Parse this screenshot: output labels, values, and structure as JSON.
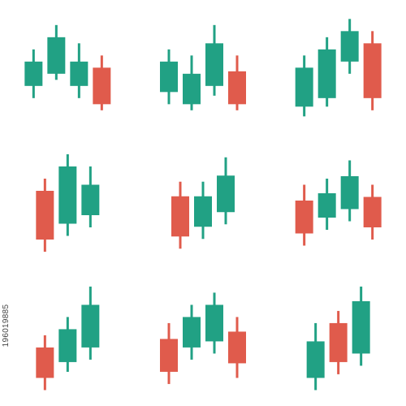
{
  "colors": {
    "bullish": "#21a184",
    "bearish": "#e05b4c",
    "background": "#ffffff"
  },
  "icons": [
    {
      "name": "candlestick-icon-1",
      "candles": [
        {
          "direction": "up",
          "high": 5,
          "open": 2,
          "close": 4,
          "low": 1
        },
        {
          "direction": "up",
          "high": 7,
          "open": 3,
          "close": 6,
          "low": 2.5
        },
        {
          "direction": "up",
          "high": 5.5,
          "open": 2,
          "close": 4,
          "low": 1
        },
        {
          "direction": "down",
          "high": 4.5,
          "open": 3.5,
          "close": 0.5,
          "low": 0
        }
      ]
    },
    {
      "name": "candlestick-icon-2",
      "candles": [
        {
          "direction": "up",
          "high": 5,
          "open": 1.5,
          "close": 4,
          "low": 0.5
        },
        {
          "direction": "up",
          "high": 4.5,
          "open": 0.5,
          "close": 3,
          "low": 0
        },
        {
          "direction": "up",
          "high": 7,
          "open": 2,
          "close": 5.5,
          "low": 1.2
        },
        {
          "direction": "down",
          "high": 4.5,
          "open": 3.2,
          "close": 0.5,
          "low": 0
        }
      ]
    },
    {
      "name": "candlestick-icon-3",
      "candles": [
        {
          "direction": "up",
          "high": 5,
          "open": 0.8,
          "close": 4,
          "low": 0
        },
        {
          "direction": "up",
          "high": 6.5,
          "open": 1.5,
          "close": 5.5,
          "low": 0.8
        },
        {
          "direction": "up",
          "high": 8,
          "open": 4.5,
          "close": 7,
          "low": 3.5
        },
        {
          "direction": "down",
          "high": 7,
          "open": 6,
          "close": 1.5,
          "low": 0.5
        }
      ]
    },
    {
      "name": "candlestick-icon-4",
      "candles": [
        {
          "direction": "down",
          "high": 5.5,
          "open": 4.5,
          "close": 0.5,
          "low": -0.5
        },
        {
          "direction": "up",
          "high": 7.5,
          "open": 1.8,
          "close": 6.5,
          "low": 0.8
        },
        {
          "direction": "up",
          "high": 6.5,
          "open": 2.5,
          "close": 5,
          "low": 1.5
        }
      ]
    },
    {
      "name": "candlestick-icon-5",
      "candles": [
        {
          "direction": "down",
          "high": 5,
          "open": 3.8,
          "close": 0.5,
          "low": -0.5
        },
        {
          "direction": "up",
          "high": 5,
          "open": 1.3,
          "close": 3.8,
          "low": 0.3
        },
        {
          "direction": "up",
          "high": 7,
          "open": 2.5,
          "close": 5.5,
          "low": 1.5
        }
      ]
    },
    {
      "name": "candlestick-icon-6",
      "candles": [
        {
          "direction": "down",
          "high": 4.5,
          "open": 3.2,
          "close": 0.5,
          "low": -0.5
        },
        {
          "direction": "up",
          "high": 5,
          "open": 1.8,
          "close": 3.8,
          "low": 0.8
        },
        {
          "direction": "up",
          "high": 6.5,
          "open": 2.5,
          "close": 5.2,
          "low": 1.5
        },
        {
          "direction": "down",
          "high": 4.5,
          "open": 3.5,
          "close": 1,
          "low": 0
        }
      ]
    },
    {
      "name": "candlestick-icon-7",
      "candles": [
        {
          "direction": "down",
          "high": 4,
          "open": 3,
          "close": 0.5,
          "low": -0.5
        },
        {
          "direction": "up",
          "high": 5.5,
          "open": 1.8,
          "close": 4.5,
          "low": 1
        },
        {
          "direction": "up",
          "high": 8,
          "open": 3,
          "close": 6.5,
          "low": 2
        }
      ]
    },
    {
      "name": "candlestick-icon-8",
      "candles": [
        {
          "direction": "down",
          "high": 4.5,
          "open": 3.2,
          "close": 0.5,
          "low": -0.5
        },
        {
          "direction": "up",
          "high": 6,
          "open": 2.5,
          "close": 5,
          "low": 1.5
        },
        {
          "direction": "up",
          "high": 7,
          "open": 3,
          "close": 6,
          "low": 2
        },
        {
          "direction": "down",
          "high": 5,
          "open": 3.8,
          "close": 1.2,
          "low": 0
        }
      ]
    },
    {
      "name": "candlestick-icon-9",
      "candles": [
        {
          "direction": "up",
          "high": 5,
          "open": 0.5,
          "close": 3.5,
          "low": -0.5
        },
        {
          "direction": "down",
          "high": 6,
          "open": 5,
          "close": 1.8,
          "low": 0.8
        },
        {
          "direction": "up",
          "high": 8,
          "open": 2.5,
          "close": 6.8,
          "low": 1.5
        }
      ]
    }
  ],
  "stock_id": "196019885"
}
